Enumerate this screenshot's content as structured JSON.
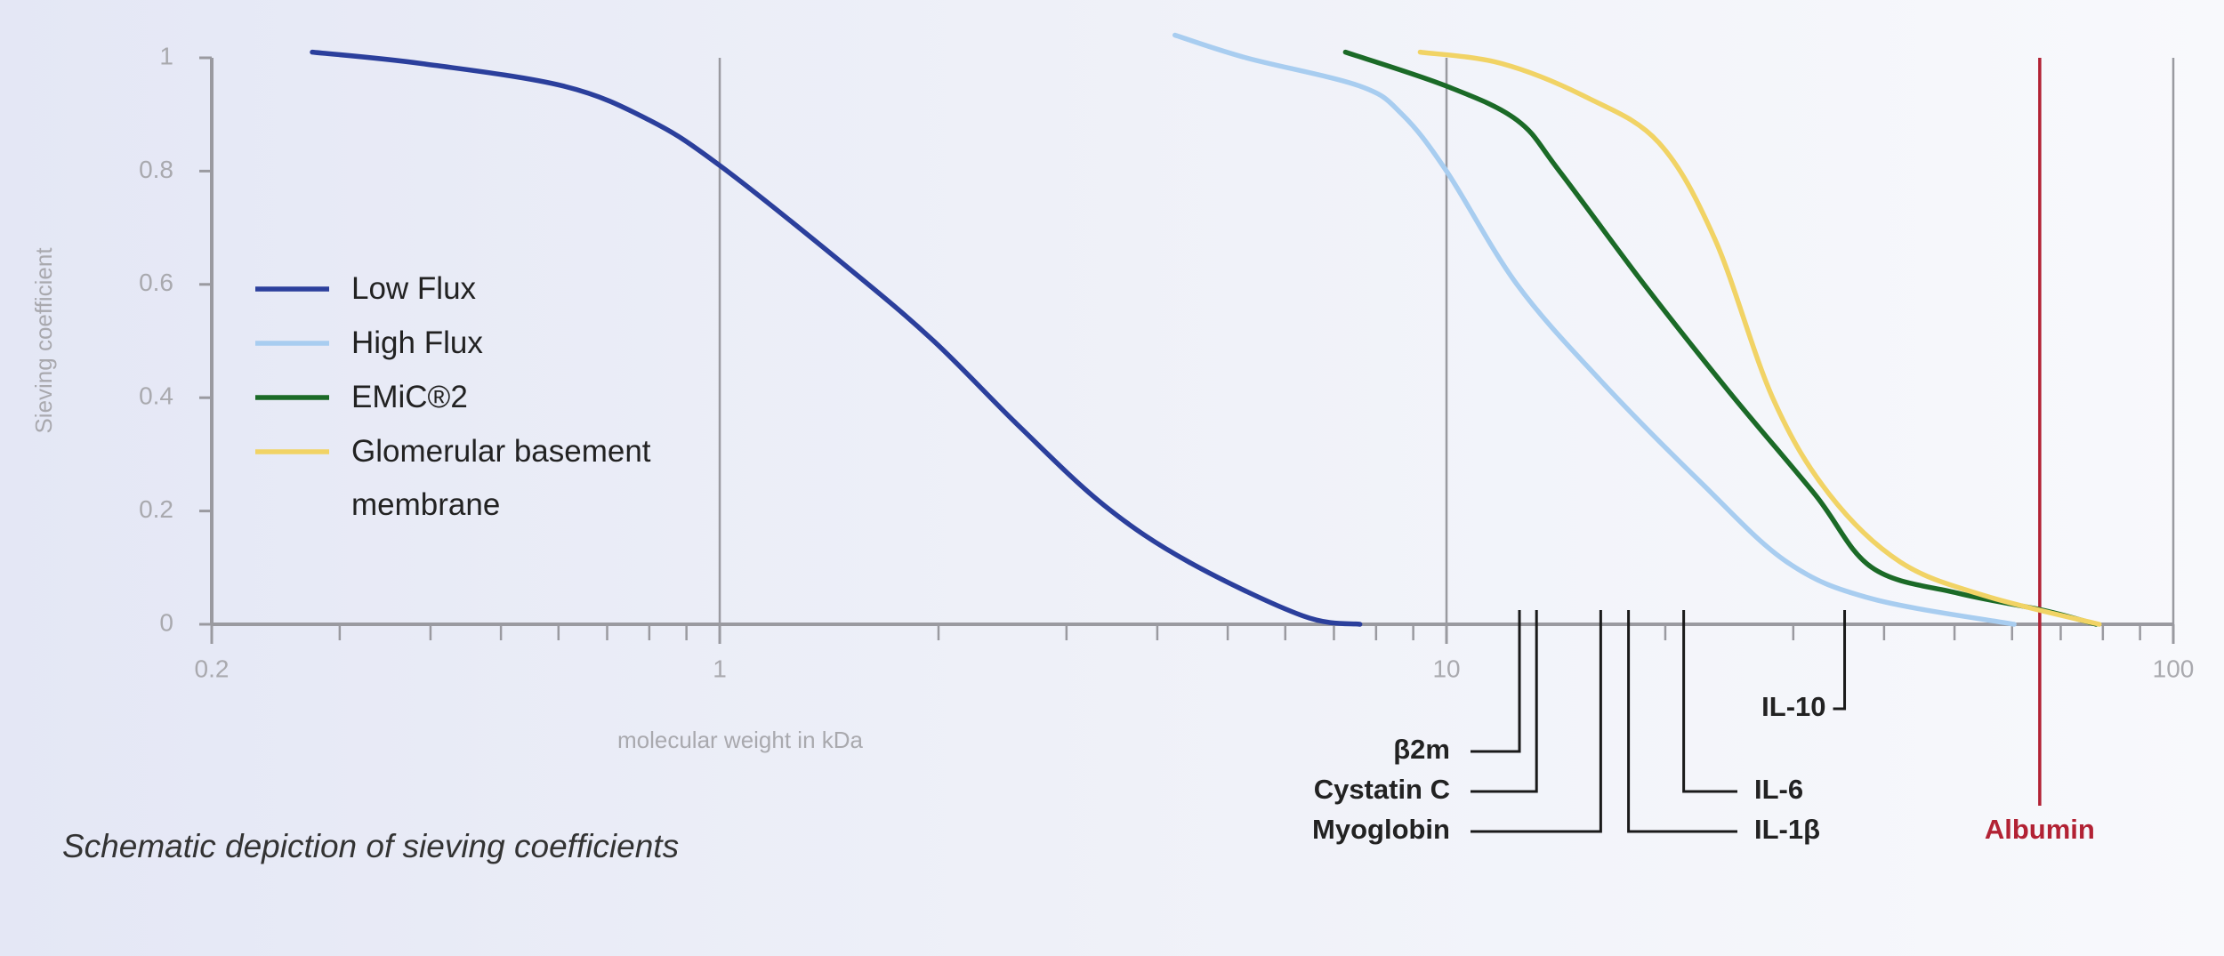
{
  "chart_data": {
    "type": "line",
    "title": "Schematic depiction of sieving coefficients",
    "xlabel": "molecular weight in kDa",
    "ylabel": "Sieving coefficient",
    "xscale": "log",
    "xlim": [
      0.2,
      100
    ],
    "ylim": [
      0,
      1
    ],
    "xticks": [
      0.2,
      1,
      10,
      100
    ],
    "xminorticks": [
      0.3,
      0.4,
      0.5,
      0.6,
      0.7,
      0.8,
      0.9,
      2,
      3,
      4,
      5,
      6,
      7,
      8,
      9,
      20,
      30,
      40,
      50,
      60,
      70,
      80,
      90
    ],
    "yticks": [
      0,
      0.2,
      0.4,
      0.6,
      0.8,
      1
    ],
    "grid": true,
    "legend": "left",
    "series": [
      {
        "name": "Low Flux",
        "color": "#2b3f9c",
        "x": [
          0.275,
          0.388,
          0.61,
          0.8,
          1,
          1.5,
          1.97,
          2.58,
          3.38,
          4.42,
          6.34,
          7.6
        ],
        "values": [
          1.01,
          0.99,
          0.95,
          0.89,
          0.81,
          0.63,
          0.5,
          0.35,
          0.21,
          0.11,
          0.015,
          0
        ]
      },
      {
        "name": "High Flux",
        "color": "#a8cdf0",
        "x": [
          4.23,
          5.3,
          7.6,
          8.69,
          10,
          12.5,
          16.3,
          22.4,
          29.4,
          38.5,
          60.4
        ],
        "values": [
          1.04,
          1.0,
          0.95,
          0.9,
          0.8,
          0.6,
          0.43,
          0.25,
          0.11,
          0.045,
          0
        ]
      },
      {
        "name": "EMiC®2",
        "color": "#1b6a27",
        "x": [
          7.26,
          10,
          12.5,
          14.3,
          18.7,
          24.5,
          32.1,
          38.5,
          50.5,
          66.1,
          78.3
        ],
        "values": [
          1.01,
          0.95,
          0.89,
          0.8,
          0.6,
          0.41,
          0.23,
          0.1,
          0.055,
          0.025,
          0
        ]
      },
      {
        "name": "Glomerular basement membrane",
        "color": "#f1d365",
        "x": [
          9.2,
          11.9,
          15.6,
          19.6,
          23.4,
          28.1,
          33.6,
          42.1,
          55.2,
          79.1
        ],
        "values": [
          1.01,
          0.99,
          0.93,
          0.85,
          0.68,
          0.4,
          0.23,
          0.11,
          0.05,
          0
        ]
      }
    ],
    "markers": [
      {
        "label": "β2m",
        "x": 12.6,
        "color": "#1a1a1a"
      },
      {
        "label": "Cystatin C",
        "x": 13.3,
        "color": "#1a1a1a"
      },
      {
        "label": "Myoglobin",
        "x": 16.3,
        "color": "#1a1a1a"
      },
      {
        "label": "IL-1β",
        "x": 17.8,
        "color": "#1a1a1a"
      },
      {
        "label": "IL-6",
        "x": 21.2,
        "color": "#1a1a1a"
      },
      {
        "label": "IL-10",
        "x": 35.3,
        "color": "#1a1a1a"
      },
      {
        "label": "Albumin",
        "x": 65.5,
        "color": "#b22234"
      }
    ]
  }
}
